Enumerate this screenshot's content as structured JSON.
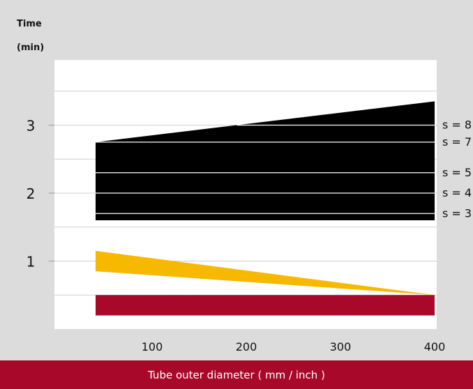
{
  "chart_data": {
    "type": "area",
    "ylabel_line1": "Time",
    "ylabel_line2": "(min)",
    "xlabel": "Tube outer diameter ( mm / inch )",
    "x_ticks": [
      100,
      200,
      300,
      400
    ],
    "y_ticks": [
      1,
      2,
      3
    ],
    "xlim": [
      0,
      420
    ],
    "ylim": [
      0,
      4
    ],
    "grid": true,
    "colors": {
      "black_band": "#000000",
      "yellow_band": "#f7b800",
      "red_band": "#a8092a",
      "x_bar": "#a8092a",
      "plot_bg": "#ffffff",
      "frame_bg": "#dcdcdc"
    },
    "black_band": {
      "x": [
        40,
        400
      ],
      "lower": [
        1.6,
        1.6
      ],
      "upper": [
        2.75,
        3.35
      ]
    },
    "wall_thickness_lines": [
      {
        "label": "s = 3",
        "y": 1.7
      },
      {
        "label": "s = 4",
        "y": 2.0
      },
      {
        "label": "s = 5",
        "y": 2.3
      },
      {
        "label": "s = 7",
        "y": 2.75
      },
      {
        "label": "s = 8",
        "y": 3.0
      }
    ],
    "yellow_band": {
      "x": [
        40,
        400
      ],
      "lower": [
        0.85,
        0.5
      ],
      "upper": [
        1.15,
        0.5
      ]
    },
    "red_band": {
      "x": [
        40,
        400
      ],
      "lower": [
        0.2,
        0.2
      ],
      "upper": [
        0.5,
        0.5
      ]
    }
  }
}
